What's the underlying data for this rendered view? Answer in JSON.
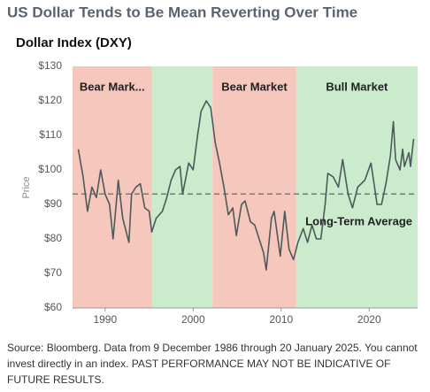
{
  "chart_data": {
    "type": "line",
    "title": "US Dollar Tends to Be Mean Reverting Over Time",
    "subtitle": "Dollar Index (DXY)",
    "y_label": "Price",
    "color": "#4d5a5a",
    "x": [
      1986.95,
      1987.5,
      1988.0,
      1988.5,
      1989.0,
      1989.5,
      1990.0,
      1990.5,
      1990.9,
      1991.5,
      1992.0,
      1992.7,
      1993.0,
      1993.5,
      1994.0,
      1994.5,
      1995.0,
      1995.3,
      1995.8,
      1996.5,
      1997.0,
      1997.5,
      1998.0,
      1998.5,
      1998.8,
      1999.5,
      2000.0,
      2000.5,
      2000.9,
      2001.5,
      2002.0,
      2002.5,
      2003.0,
      2003.5,
      2004.0,
      2004.5,
      2004.9,
      2005.5,
      2005.9,
      2006.5,
      2007.0,
      2007.5,
      2008.0,
      2008.3,
      2008.9,
      2009.2,
      2009.9,
      2010.4,
      2010.9,
      2011.4,
      2011.9,
      2012.5,
      2013.0,
      2013.5,
      2014.0,
      2014.5,
      2015.0,
      2015.3,
      2015.9,
      2016.5,
      2016.99,
      2017.6,
      2018.1,
      2018.7,
      2019.5,
      2020.2,
      2020.9,
      2021.4,
      2021.9,
      2022.4,
      2022.75,
      2023.0,
      2023.5,
      2023.8,
      2024.0,
      2024.5,
      2024.7,
      2025.05
    ],
    "values": [
      106,
      98,
      88,
      95,
      92,
      100,
      93,
      90,
      80,
      97,
      86,
      79,
      93,
      95,
      96,
      89,
      88,
      82,
      86,
      88,
      92,
      97,
      100,
      101,
      93,
      102,
      100,
      110,
      117,
      120,
      118,
      108,
      102,
      95,
      87,
      89,
      81,
      90,
      91,
      85,
      84,
      80,
      76,
      71,
      86,
      88,
      75,
      88,
      77,
      74,
      79,
      83,
      79,
      84,
      80,
      80,
      90,
      99,
      98,
      95,
      103,
      93,
      89,
      95,
      97,
      102,
      90,
      90,
      96,
      104,
      114,
      103,
      100,
      106,
      101,
      105,
      101,
      109
    ],
    "xlim": [
      1986.3,
      2025.5
    ],
    "xticks": [
      1990,
      2000,
      2010,
      2020
    ],
    "ylim": [
      60,
      130
    ],
    "yticks": [
      {
        "value": 60,
        "label": "$60"
      },
      {
        "value": 70,
        "label": "$70"
      },
      {
        "value": 80,
        "label": "$80"
      },
      {
        "value": 90,
        "label": "$90"
      },
      {
        "value": 100,
        "label": "$100"
      },
      {
        "value": 110,
        "label": "$110"
      },
      {
        "value": 120,
        "label": "$120"
      },
      {
        "value": 130,
        "label": "$130"
      }
    ],
    "grid": false,
    "regions": [
      {
        "label": "Bear Mark...",
        "start": 1986.3,
        "end": 1995.3,
        "color": "#f5c7bd"
      },
      {
        "label": null,
        "start": 1995.3,
        "end": 2002.2,
        "color": "#cbebcd"
      },
      {
        "label": "Bear Market",
        "start": 2002.2,
        "end": 2011.7,
        "color": "#f5c7bd"
      },
      {
        "label": "Bull Market",
        "start": 2011.7,
        "end": 2025.5,
        "color": "#cbebcd"
      }
    ],
    "average": {
      "value": 93,
      "label": "Long-Term Average",
      "color": "#7a7a7a"
    },
    "source": "Source: Bloomberg. Data from 9 December 1986 through 20 January 2025. You cannot invest directly in an index. PAST PERFORMANCE MAY NOT BE INDICATIVE OF FUTURE RESULTS."
  }
}
